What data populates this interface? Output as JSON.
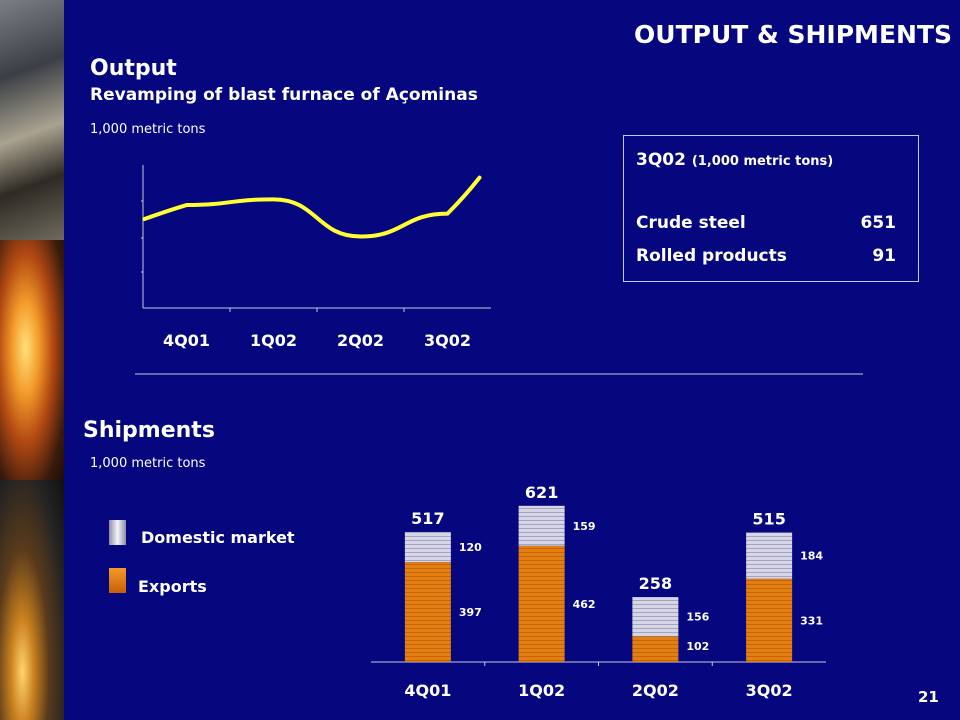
{
  "slide": {
    "title": "OUTPUT & SHIPMENTS",
    "page_number": "21"
  },
  "output_section": {
    "title": "Output",
    "subtitle": "Revamping of blast furnace of Açominas",
    "unit": "1,000 metric tons"
  },
  "infobox": {
    "period": "3Q02",
    "unit": "(1,000 metric tons)",
    "rows": [
      {
        "label": "Crude steel",
        "value": "651"
      },
      {
        "label": "Rolled products",
        "value": "91"
      }
    ]
  },
  "shipments_section": {
    "title": "Shipments",
    "unit": "1,000 metric tons"
  },
  "legend": {
    "domestic_label": "Domestic market",
    "exports_label": "Exports"
  },
  "colors": {
    "background": "#06067f",
    "line": "#ffff33",
    "exports": "#e37f10",
    "domestic": "#d6d6e6"
  },
  "chart_data": [
    {
      "type": "line",
      "title": "Output",
      "categories": [
        "4Q01",
        "1Q02",
        "2Q02",
        "3Q02"
      ],
      "series": [
        {
          "values": [
            0.72,
            0.76,
            0.5,
            0.66
          ]
        }
      ],
      "ylim": [
        0,
        1
      ],
      "grid": false
    },
    {
      "type": "bar",
      "stacked": true,
      "title": "Shipments",
      "categories": [
        "4Q01",
        "1Q02",
        "2Q02",
        "3Q02"
      ],
      "series": [
        {
          "name": "Exports",
          "values": [
            397,
            462,
            102,
            331
          ]
        },
        {
          "name": "Domestic market",
          "values": [
            120,
            159,
            156,
            184
          ]
        }
      ],
      "totals": [
        517,
        621,
        258,
        515
      ],
      "ylim": [
        0,
        660
      ],
      "legend": "left"
    }
  ]
}
